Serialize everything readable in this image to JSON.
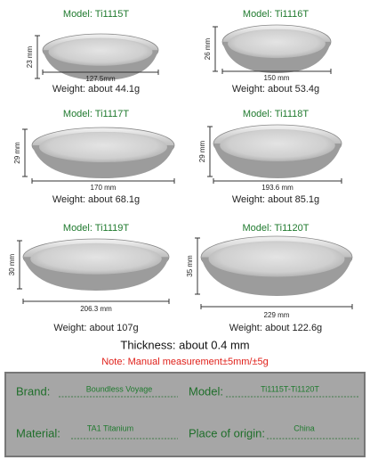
{
  "items": [
    {
      "model": "Model: Ti1115T",
      "height": "23 mm",
      "width": "127.5mm",
      "weight": "Weight: about 44.1g"
    },
    {
      "model": "Model: Ti1116T",
      "height": "26 mm",
      "width": "150 mm",
      "weight": "Weight: about 53.4g"
    },
    {
      "model": "Model: Ti1117T",
      "height": "29 mm",
      "width": "170 mm",
      "weight": "Weight: about 68.1g"
    },
    {
      "model": "Model: Ti1118T",
      "height": "29 mm",
      "width": "193.6 mm",
      "weight": "Weight: about 85.1g"
    },
    {
      "model": "Model: Ti1119T",
      "height": "30 mm",
      "width": "206.3 mm",
      "weight": "Weight: about 107g"
    },
    {
      "model": "Model: Ti1120T",
      "height": "35 mm",
      "width": "229 mm",
      "weight": "Weight: about 122.6g"
    }
  ],
  "thickness": "Thickness: about 0.4 mm",
  "note": "Note: Manual measurement±5mm/±5g",
  "info": {
    "brand_label": "Brand:",
    "brand": "Boundless Voyage",
    "model_label": "Model:",
    "model": "Ti1115T-Ti1120T",
    "material_label": "Material:",
    "material": "TA1 Titanium",
    "origin_label": "Place of origin:",
    "origin": "China"
  }
}
